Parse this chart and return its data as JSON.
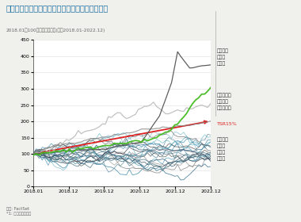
{
  "title": "国内上場製薬企業とグローバルトップの株価推移",
  "subtitle": "2018.01を100とした株価推移(倍、2018.01-2022.12)",
  "source": "出所: FactSet\n*1: 加重平均で算出",
  "xlabel_ticks": [
    "2018.01",
    "2018.12",
    "2019.12",
    "2020.12",
    "2021.12",
    "2022.12"
  ],
  "ylim": [
    0,
    450
  ],
  "yticks": [
    0,
    50,
    100,
    150,
    200,
    250,
    300,
    350,
    400,
    450
  ],
  "title_color": "#1a6fa3",
  "background_color": "#f0f0ec",
  "annotation_attractive": "投資対象\nとして\n魅力的",
  "annotation_not_attractive": "投資対象\nとして\n魅力的\nでない",
  "annotation_global": "グローバル\nトップの\n加重平均値",
  "annotation_tsr": "TSR15%",
  "n_timepoints": 60
}
